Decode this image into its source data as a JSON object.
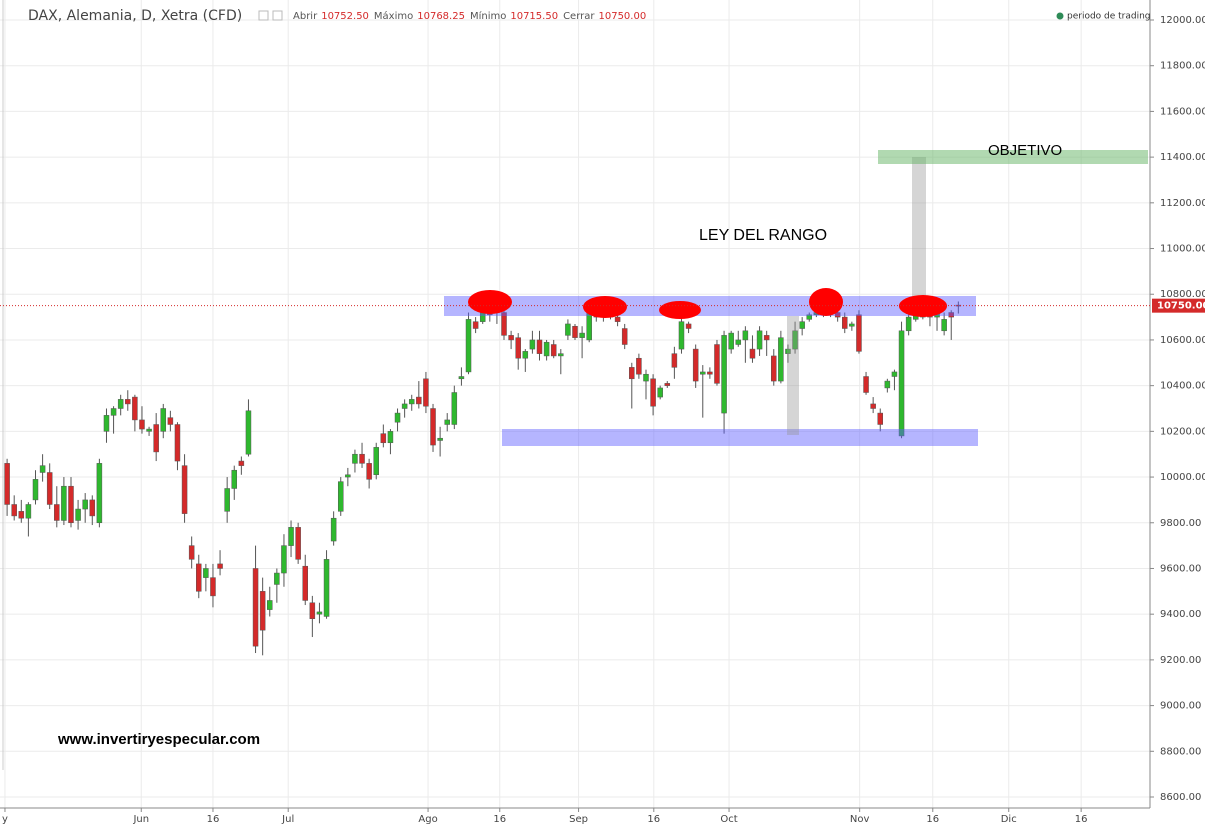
{
  "chart_data": {
    "type": "candlestick",
    "title": "DAX, Alemania, D, Xetra (CFD)",
    "header": [
      {
        "label": "Abrir",
        "value": "10752.50"
      },
      {
        "label": "Máximo",
        "value": "10768.25"
      },
      {
        "label": "Mínimo",
        "value": "10715.50"
      },
      {
        "label": "Cerrar",
        "value": "10750.00"
      }
    ],
    "legend": "periodo de trading",
    "annotations": [
      "LEY DEL RANGO",
      "OBJETIVO",
      "www.invertiryespecular.com"
    ],
    "up_color": "#2eb82e",
    "down_color": "#d42a2a",
    "last_price": {
      "value": 10750,
      "label": "10750.00"
    },
    "xlim": [
      -1,
      161
    ],
    "ylim": [
      8600,
      12000
    ],
    "xticks": [
      {
        "value": -0.3,
        "label": "y"
      },
      {
        "value": 18.9,
        "label": "Jun"
      },
      {
        "value": 29,
        "label": "16"
      },
      {
        "value": 39.6,
        "label": "Jul"
      },
      {
        "value": 59.3,
        "label": "Ago"
      },
      {
        "value": 69.4,
        "label": "16"
      },
      {
        "value": 80.5,
        "label": "Sep"
      },
      {
        "value": 91.1,
        "label": "16"
      },
      {
        "value": 101.7,
        "label": "Oct"
      },
      {
        "value": 120.1,
        "label": "Nov"
      },
      {
        "value": 130.4,
        "label": "16"
      },
      {
        "value": 141.1,
        "label": "Dic"
      },
      {
        "value": 151.3,
        "label": "16"
      }
    ],
    "yticks": [
      {
        "value": 8600,
        "label": "8600.00"
      },
      {
        "value": 8800,
        "label": "8800.00"
      },
      {
        "value": 9000,
        "label": "9000.00"
      },
      {
        "value": 9200,
        "label": "9200.00"
      },
      {
        "value": 9400,
        "label": "9400.00"
      },
      {
        "value": 9600,
        "label": "9600.00"
      },
      {
        "value": 9800,
        "label": "9800.00"
      },
      {
        "value": 10000,
        "label": "10000.00"
      },
      {
        "value": 10200,
        "label": "10200.00"
      },
      {
        "value": 10400,
        "label": "10400.00"
      },
      {
        "value": 10600,
        "label": "10600.00"
      },
      {
        "value": 10800,
        "label": "10800.00"
      },
      {
        "value": 11000,
        "label": "11000.00"
      },
      {
        "value": 11200,
        "label": "11200.00"
      },
      {
        "value": 11400,
        "label": "11400.00"
      },
      {
        "value": 11600,
        "label": "11600.00"
      },
      {
        "value": 11800,
        "label": "11800.00"
      },
      {
        "value": 12000,
        "label": "12000.00"
      }
    ],
    "grid": true,
    "x": [
      0,
      1,
      2,
      3,
      4,
      5,
      6,
      7,
      8,
      9,
      10,
      11,
      12,
      13,
      14,
      15,
      16,
      17,
      18,
      19,
      20,
      21,
      22,
      23,
      24,
      25,
      26,
      27,
      28,
      29,
      30,
      31,
      32,
      33,
      34,
      35,
      36,
      37,
      38,
      39,
      40,
      41,
      42,
      43,
      44,
      45,
      46,
      47,
      48,
      49,
      50,
      51,
      52,
      53,
      54,
      55,
      56,
      57,
      58,
      59,
      60,
      61,
      62,
      63,
      64,
      65,
      66,
      67,
      68,
      69,
      70,
      71,
      72,
      73,
      74,
      75,
      76,
      77,
      78,
      79,
      80,
      81,
      82,
      83,
      84,
      85,
      86,
      87,
      88,
      89,
      90,
      91,
      92,
      93,
      94,
      95,
      96,
      97,
      98,
      99,
      100,
      101,
      102,
      103,
      104,
      105,
      106,
      107,
      108,
      109,
      110,
      111,
      112,
      113,
      114,
      115,
      116,
      117,
      118,
      119,
      120,
      121,
      122,
      123,
      124,
      125,
      126,
      127,
      128,
      129,
      130,
      131,
      132,
      133,
      134
    ],
    "ohlc": [
      [
        10060,
        10080,
        9830,
        9880
      ],
      [
        9880,
        9920,
        9810,
        9830
      ],
      [
        9850,
        9900,
        9800,
        9820
      ],
      [
        9820,
        9890,
        9740,
        9880
      ],
      [
        9900,
        10030,
        9880,
        9990
      ],
      [
        10020,
        10100,
        9980,
        10050
      ],
      [
        10020,
        10060,
        9860,
        9880
      ],
      [
        9880,
        9960,
        9780,
        9810
      ],
      [
        9810,
        10000,
        9790,
        9960
      ],
      [
        9960,
        10000,
        9780,
        9800
      ],
      [
        9810,
        9900,
        9770,
        9860
      ],
      [
        9860,
        9930,
        9800,
        9900
      ],
      [
        9900,
        9920,
        9790,
        9830
      ],
      [
        9800,
        10080,
        9780,
        10060
      ],
      [
        10200,
        10300,
        10150,
        10270
      ],
      [
        10270,
        10310,
        10190,
        10300
      ],
      [
        10300,
        10360,
        10270,
        10340
      ],
      [
        10340,
        10380,
        10290,
        10320
      ],
      [
        10350,
        10360,
        10200,
        10250
      ],
      [
        10250,
        10310,
        10190,
        10210
      ],
      [
        10200,
        10220,
        10180,
        10210
      ],
      [
        10230,
        10280,
        10070,
        10110
      ],
      [
        10200,
        10320,
        10170,
        10300
      ],
      [
        10260,
        10290,
        10200,
        10230
      ],
      [
        10230,
        10240,
        10030,
        10070
      ],
      [
        10050,
        10100,
        9800,
        9840
      ],
      [
        9700,
        9740,
        9600,
        9640
      ],
      [
        9620,
        9660,
        9470,
        9500
      ],
      [
        9560,
        9620,
        9500,
        9600
      ],
      [
        9560,
        9620,
        9430,
        9480
      ],
      [
        9620,
        9680,
        9570,
        9600
      ],
      [
        9850,
        10000,
        9800,
        9950
      ],
      [
        9950,
        10050,
        9900,
        10030
      ],
      [
        10070,
        10090,
        10010,
        10050
      ],
      [
        10100,
        10340,
        10090,
        10290
      ],
      [
        9600,
        9700,
        9230,
        9260
      ],
      [
        9500,
        9560,
        9220,
        9330
      ],
      [
        9420,
        9520,
        9390,
        9460
      ],
      [
        9530,
        9600,
        9450,
        9580
      ],
      [
        9580,
        9750,
        9520,
        9700
      ],
      [
        9700,
        9810,
        9650,
        9780
      ],
      [
        9780,
        9800,
        9620,
        9640
      ],
      [
        9610,
        9660,
        9440,
        9460
      ],
      [
        9450,
        9480,
        9300,
        9380
      ],
      [
        9400,
        9450,
        9360,
        9410
      ],
      [
        9390,
        9680,
        9380,
        9640
      ],
      [
        9720,
        9850,
        9700,
        9820
      ],
      [
        9850,
        10000,
        9830,
        9980
      ],
      [
        10000,
        10040,
        9960,
        10010
      ],
      [
        10060,
        10120,
        10020,
        10100
      ],
      [
        10100,
        10150,
        10040,
        10060
      ],
      [
        10060,
        10080,
        9950,
        9990
      ],
      [
        10010,
        10150,
        9990,
        10130
      ],
      [
        10190,
        10230,
        10130,
        10150
      ],
      [
        10150,
        10210,
        10100,
        10200
      ],
      [
        10240,
        10300,
        10200,
        10280
      ],
      [
        10300,
        10340,
        10260,
        10320
      ],
      [
        10320,
        10360,
        10290,
        10340
      ],
      [
        10350,
        10420,
        10300,
        10320
      ],
      [
        10430,
        10460,
        10280,
        10310
      ],
      [
        10300,
        10320,
        10110,
        10140
      ],
      [
        10160,
        10220,
        10090,
        10170
      ],
      [
        10230,
        10280,
        10200,
        10250
      ],
      [
        10230,
        10400,
        10210,
        10370
      ],
      [
        10430,
        10480,
        10400,
        10440
      ],
      [
        10460,
        10720,
        10450,
        10690
      ],
      [
        10680,
        10700,
        10630,
        10650
      ],
      [
        10680,
        10740,
        10670,
        10720
      ],
      [
        10720,
        10760,
        10680,
        10710
      ],
      [
        10730,
        10760,
        10670,
        10720
      ],
      [
        10720,
        10760,
        10600,
        10620
      ],
      [
        10620,
        10640,
        10560,
        10600
      ],
      [
        10610,
        10630,
        10470,
        10520
      ],
      [
        10520,
        10560,
        10460,
        10550
      ],
      [
        10560,
        10640,
        10540,
        10600
      ],
      [
        10600,
        10640,
        10510,
        10540
      ],
      [
        10530,
        10600,
        10510,
        10590
      ],
      [
        10580,
        10600,
        10520,
        10530
      ],
      [
        10530,
        10560,
        10450,
        10540
      ],
      [
        10620,
        10690,
        10600,
        10670
      ],
      [
        10660,
        10670,
        10600,
        10610
      ],
      [
        10610,
        10660,
        10520,
        10630
      ],
      [
        10600,
        10740,
        10590,
        10720
      ],
      [
        10720,
        10760,
        10680,
        10700
      ],
      [
        10710,
        10730,
        10680,
        10720
      ],
      [
        10720,
        10760,
        10690,
        10700
      ],
      [
        10700,
        10740,
        10660,
        10680
      ],
      [
        10650,
        10670,
        10560,
        10580
      ],
      [
        10480,
        10500,
        10300,
        10430
      ],
      [
        10520,
        10540,
        10430,
        10450
      ],
      [
        10420,
        10470,
        10340,
        10450
      ],
      [
        10430,
        10450,
        10270,
        10310
      ],
      [
        10350,
        10400,
        10340,
        10390
      ],
      [
        10410,
        10420,
        10390,
        10400
      ],
      [
        10540,
        10570,
        10430,
        10480
      ],
      [
        10560,
        10700,
        10540,
        10680
      ],
      [
        10670,
        10680,
        10630,
        10650
      ],
      [
        10560,
        10580,
        10390,
        10420
      ],
      [
        10450,
        10490,
        10260,
        10460
      ],
      [
        10460,
        10480,
        10430,
        10450
      ],
      [
        10580,
        10600,
        10400,
        10410
      ],
      [
        10280,
        10640,
        10190,
        10620
      ],
      [
        10560,
        10640,
        10540,
        10630
      ],
      [
        10580,
        10640,
        10570,
        10600
      ],
      [
        10600,
        10660,
        10500,
        10640
      ],
      [
        10560,
        10620,
        10500,
        10520
      ],
      [
        10560,
        10660,
        10530,
        10640
      ],
      [
        10620,
        10640,
        10530,
        10600
      ],
      [
        10530,
        10560,
        10400,
        10420
      ],
      [
        10420,
        10640,
        10410,
        10610
      ],
      [
        10540,
        10580,
        10500,
        10560
      ],
      [
        10560,
        10680,
        10540,
        10640
      ],
      [
        10650,
        10700,
        10620,
        10680
      ],
      [
        10690,
        10720,
        10680,
        10710
      ],
      [
        10710,
        10740,
        10700,
        10720
      ],
      [
        10720,
        10760,
        10700,
        10740
      ],
      [
        10720,
        10780,
        10700,
        10730
      ],
      [
        10720,
        10740,
        10680,
        10700
      ],
      [
        10700,
        10720,
        10630,
        10650
      ],
      [
        10660,
        10680,
        10640,
        10670
      ],
      [
        10710,
        10730,
        10540,
        10550
      ],
      [
        10440,
        10460,
        10360,
        10370
      ],
      [
        10320,
        10350,
        10280,
        10300
      ],
      [
        10280,
        10300,
        10200,
        10230
      ],
      [
        10390,
        10430,
        10370,
        10420
      ],
      [
        10440,
        10470,
        10380,
        10460
      ],
      [
        10180,
        10680,
        10170,
        10640
      ],
      [
        10640,
        10720,
        10620,
        10700
      ],
      [
        10690,
        10740,
        10680,
        10720
      ],
      [
        10700,
        10760,
        10690,
        10710
      ],
      [
        10710,
        10750,
        10660,
        10700
      ],
      [
        10700,
        10760,
        10640,
        10730
      ],
      [
        10640,
        10720,
        10620,
        10690
      ],
      [
        10720,
        10730,
        10600,
        10700
      ],
      [
        10752.5,
        10768.25,
        10715.5,
        10750
      ]
    ]
  }
}
